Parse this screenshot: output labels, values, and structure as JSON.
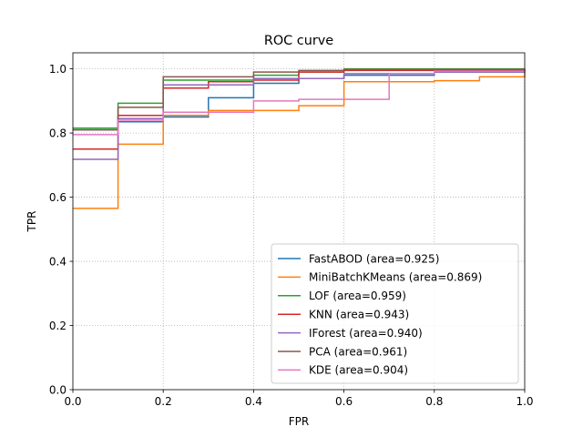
{
  "chart_data": {
    "type": "line",
    "title": "ROC curve",
    "xlabel": "FPR",
    "ylabel": "TPR",
    "xlim": [
      0,
      1
    ],
    "ylim": [
      0,
      1.05
    ],
    "xticks": [
      0.0,
      0.2,
      0.4,
      0.6,
      0.8,
      1.0
    ],
    "xtick_labels": [
      "0.0",
      "0.2",
      "0.4",
      "0.6",
      "0.8",
      "1.0"
    ],
    "yticks": [
      0.0,
      0.2,
      0.4,
      0.6,
      0.8,
      1.0
    ],
    "ytick_labels": [
      "0.0",
      "0.2",
      "0.4",
      "0.6",
      "0.8",
      "1.0"
    ],
    "grid": true,
    "legend_position": "lower-right",
    "step": "post",
    "series": [
      {
        "name": "FastABOD (area=0.925)",
        "color": "#1f77b4",
        "x": [
          0,
          0.1,
          0.2,
          0.3,
          0.4,
          0.5,
          0.6,
          0.8,
          1.0
        ],
        "y": [
          0.81,
          0.835,
          0.85,
          0.91,
          0.955,
          0.97,
          0.98,
          0.99,
          1.0
        ]
      },
      {
        "name": "MiniBatchKMeans (area=0.869)",
        "color": "#ff7f0e",
        "x": [
          0,
          0.1,
          0.2,
          0.3,
          0.4,
          0.5,
          0.6,
          0.8,
          0.9,
          1.0
        ],
        "y": [
          0.565,
          0.765,
          0.855,
          0.87,
          0.87,
          0.885,
          0.96,
          0.963,
          0.975,
          1.0
        ]
      },
      {
        "name": "LOF (area=0.959)",
        "color": "#2ca02c",
        "x": [
          0,
          0.1,
          0.2,
          0.4,
          0.5,
          0.6,
          1.0
        ],
        "y": [
          0.815,
          0.893,
          0.965,
          0.98,
          0.99,
          1.0,
          1.0
        ]
      },
      {
        "name": "KNN (area=0.943)",
        "color": "#d62728",
        "x": [
          0,
          0.1,
          0.2,
          0.3,
          0.4,
          0.5,
          0.6,
          1.0
        ],
        "y": [
          0.75,
          0.855,
          0.94,
          0.96,
          0.965,
          0.99,
          0.995,
          1.0
        ]
      },
      {
        "name": "IForest (area=0.940)",
        "color": "#9467bd",
        "x": [
          0,
          0.1,
          0.2,
          0.4,
          0.6,
          0.8,
          1.0
        ],
        "y": [
          0.718,
          0.845,
          0.95,
          0.97,
          0.985,
          0.99,
          1.0
        ]
      },
      {
        "name": "PCA (area=0.961)",
        "color": "#8c564b",
        "x": [
          0,
          0.1,
          0.2,
          0.4,
          0.5,
          0.6,
          1.0
        ],
        "y": [
          0.81,
          0.88,
          0.975,
          0.99,
          0.995,
          0.998,
          1.0
        ]
      },
      {
        "name": "KDE (area=0.904)",
        "color": "#e377c2",
        "x": [
          0,
          0.1,
          0.2,
          0.4,
          0.5,
          0.7,
          0.8,
          1.0
        ],
        "y": [
          0.795,
          0.84,
          0.865,
          0.9,
          0.905,
          0.985,
          0.993,
          1.0
        ]
      }
    ]
  }
}
